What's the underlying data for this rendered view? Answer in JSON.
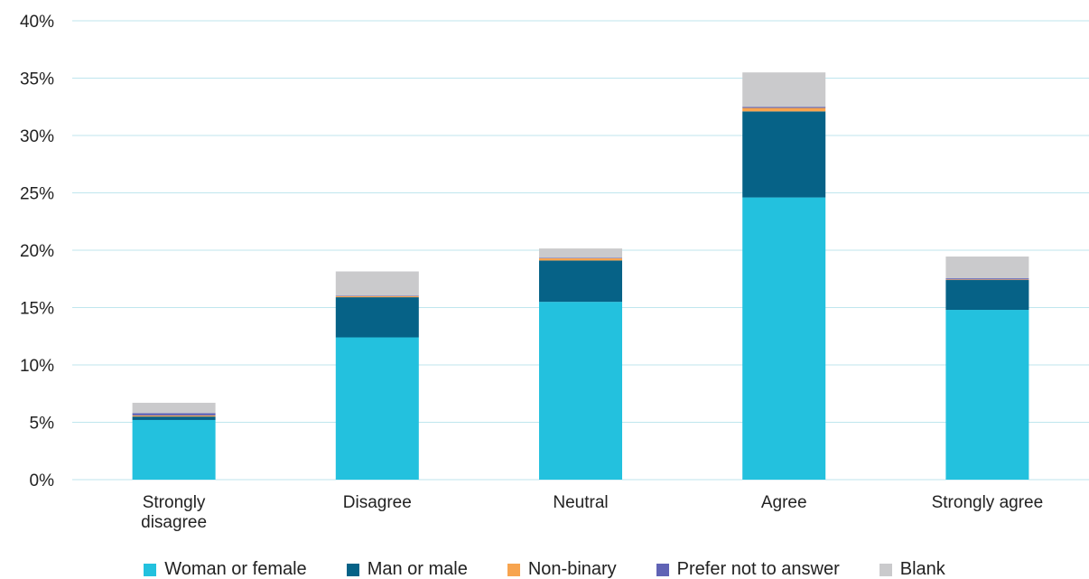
{
  "chart_data": {
    "type": "bar",
    "stacked": true,
    "categories": [
      "Strongly disagree",
      "Disagree",
      "Neutral",
      "Agree",
      "Strongly agree"
    ],
    "category_lines": [
      [
        "Strongly",
        "disagree"
      ],
      [
        "Disagree"
      ],
      [
        "Neutral"
      ],
      [
        "Agree"
      ],
      [
        "Strongly agree"
      ]
    ],
    "series": [
      {
        "name": "Woman or female",
        "color": "#23c1de",
        "values": [
          5.2,
          12.4,
          15.5,
          24.6,
          14.8
        ]
      },
      {
        "name": "Man or male",
        "color": "#066287",
        "values": [
          0.3,
          3.5,
          3.6,
          7.5,
          2.6
        ]
      },
      {
        "name": "Non-binary",
        "color": "#f7a44f",
        "values": [
          0.1,
          0.1,
          0.2,
          0.3,
          0.05
        ]
      },
      {
        "name": "Prefer not to answer",
        "color": "#6063b5",
        "values": [
          0.2,
          0.05,
          0.05,
          0.1,
          0.1
        ]
      },
      {
        "name": "Blank",
        "color": "#cacacc",
        "values": [
          0.9,
          2.1,
          0.8,
          3.0,
          1.9
        ]
      }
    ],
    "y_ticks": [
      "0%",
      "5%",
      "10%",
      "15%",
      "20%",
      "25%",
      "30%",
      "35%",
      "40%"
    ],
    "ylim": [
      0,
      40
    ],
    "grid": true,
    "grid_color": "#bfe6ee",
    "legend_position": "bottom"
  }
}
